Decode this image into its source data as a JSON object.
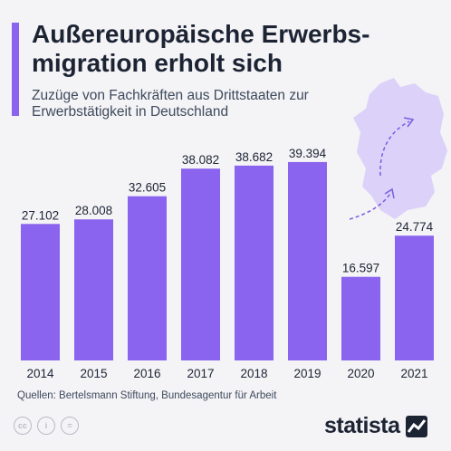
{
  "header": {
    "title": "Außereuropäische Erwerbs-migration erholt sich",
    "subtitle": "Zuzüge von Fachkräften aus Drittstaaten zur Erwerbstätigkeit in Deutschland"
  },
  "footer": {
    "source": "Quellen: Bertelsmann Stiftung, Bundesagentur für Arbeit",
    "logo_text": "statista"
  },
  "colors": {
    "accent": "#8a63ee",
    "bar": "#8a63ee",
    "background": "#f4f3f6",
    "map": "#dcd2f9"
  },
  "chart_data": {
    "type": "bar",
    "categories": [
      "2014",
      "2015",
      "2016",
      "2017",
      "2018",
      "2019",
      "2020",
      "2021"
    ],
    "values": [
      27102,
      28008,
      32605,
      38082,
      38682,
      39394,
      16597,
      24774
    ],
    "value_labels": [
      "27.102",
      "28.008",
      "32.605",
      "38.082",
      "38.682",
      "39.394",
      "16.597",
      "24.774"
    ],
    "title": "Außereuropäische Erwerbs-migration erholt sich",
    "xlabel": "",
    "ylabel": "",
    "ylim": [
      0,
      41000
    ],
    "grid": false
  }
}
